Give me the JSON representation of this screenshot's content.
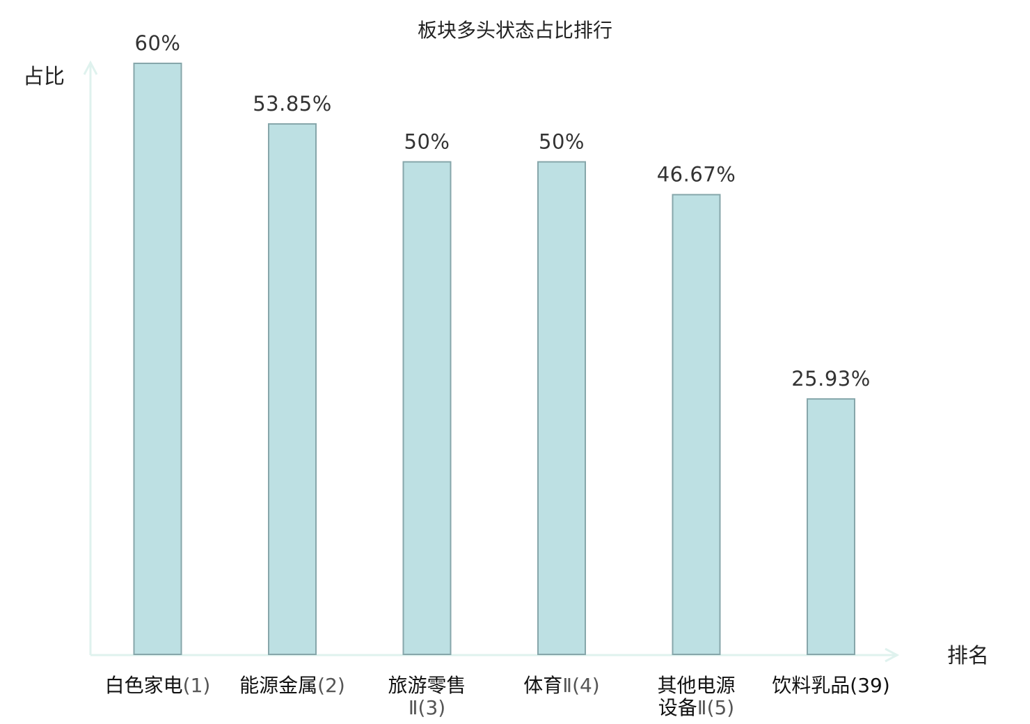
{
  "chart_data": {
    "type": "bar",
    "title": "板块多头状态占比排行",
    "ylabel": "占比",
    "xlabel": "排名",
    "ylim": [
      0,
      60
    ],
    "grid": false,
    "categories": [
      {
        "lines": [
          {
            "name": "白色家电",
            "rank": "(1)"
          }
        ],
        "highlight": false
      },
      {
        "lines": [
          {
            "name": "能源金属",
            "rank": "(2)"
          }
        ],
        "highlight": false
      },
      {
        "lines": [
          {
            "name": "旅游零售",
            "rank": ""
          },
          {
            "name": "",
            "rank": "Ⅱ(3)"
          }
        ],
        "highlight": false
      },
      {
        "lines": [
          {
            "name": "体育",
            "rank": "Ⅱ(4)"
          }
        ],
        "highlight": false
      },
      {
        "lines": [
          {
            "name": "其他电源",
            "rank": ""
          },
          {
            "name": "设备",
            "rank": "Ⅱ(5)"
          }
        ],
        "highlight": false
      },
      {
        "lines": [
          {
            "name": "饮料乳品",
            "rank": "(39)"
          }
        ],
        "highlight": true
      }
    ],
    "values": [
      60,
      53.85,
      50,
      50,
      46.67,
      25.93
    ],
    "value_labels": [
      "60%",
      "53.85%",
      "50%",
      "50%",
      "46.67%",
      "25.93%"
    ]
  },
  "colors": {
    "bar_fill": "#bde0e3",
    "bar_stroke": "#86a6aa",
    "axis": "#dff2ee",
    "highlight_text": "#e8191c",
    "text": "#222222"
  }
}
